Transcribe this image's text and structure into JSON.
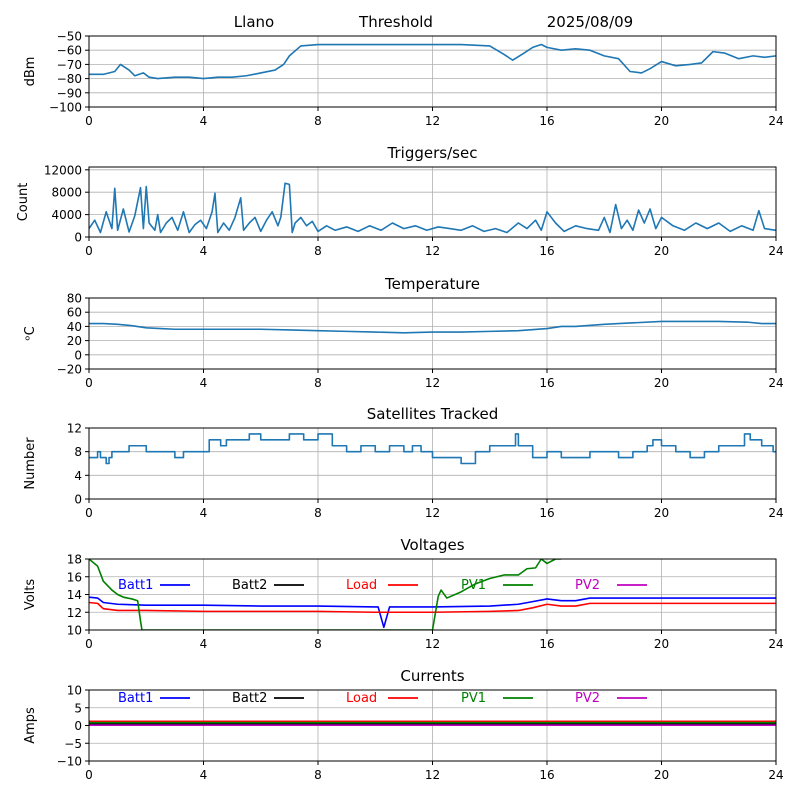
{
  "header": {
    "site": "Llano",
    "label": "Threshold",
    "date": "2025/08/09"
  },
  "colors": {
    "line": "#1f77b4",
    "grid": "#b0b0b0",
    "batt1": "#0000ff",
    "batt2": "#000000",
    "load": "#ff0000",
    "pv1": "#008000",
    "pv2": "#bf00bf"
  },
  "chart_data": [
    {
      "type": "line",
      "title": "",
      "ylabel": "dBm",
      "xlim": [
        0,
        24
      ],
      "ylim": [
        -100,
        -50
      ],
      "xticks": [
        0,
        4,
        8,
        12,
        16,
        20,
        24
      ],
      "yticks": [
        -100,
        -90,
        -80,
        -70,
        -60,
        -50
      ],
      "series": [
        {
          "color": "line",
          "x": [
            0,
            0.5,
            0.9,
            1.1,
            1.4,
            1.6,
            1.9,
            2.1,
            2.4,
            3.0,
            3.5,
            4.0,
            4.5,
            5.0,
            5.5,
            6.0,
            6.5,
            6.8,
            7.0,
            7.4,
            8.0,
            9.0,
            10.0,
            11.0,
            12.0,
            13.0,
            14.0,
            14.5,
            14.8,
            15.2,
            15.5,
            15.8,
            16.0,
            16.5,
            17.0,
            17.5,
            18.0,
            18.5,
            18.9,
            19.3,
            19.6,
            20.0,
            20.5,
            21.0,
            21.4,
            21.8,
            22.2,
            22.7,
            23.2,
            23.6,
            24.0
          ],
          "y": [
            -77,
            -77,
            -75,
            -70,
            -74,
            -78,
            -76,
            -79,
            -80,
            -79,
            -79,
            -80,
            -79,
            -79,
            -78,
            -76,
            -74,
            -70,
            -64,
            -57,
            -56,
            -56,
            -56,
            -56,
            -56,
            -56,
            -57,
            -63,
            -67,
            -62,
            -58,
            -56,
            -58,
            -60,
            -59,
            -60,
            -64,
            -66,
            -75,
            -76,
            -73,
            -68,
            -71,
            -70,
            -69,
            -61,
            -62,
            -66,
            -64,
            -65,
            -64
          ]
        }
      ]
    },
    {
      "type": "line",
      "title": "Triggers/sec",
      "ylabel": "Count",
      "xlim": [
        0,
        24
      ],
      "ylim": [
        0,
        12500
      ],
      "xticks": [
        0,
        4,
        8,
        12,
        16,
        20,
        24
      ],
      "yticks": [
        0,
        4000,
        8000,
        12000
      ],
      "series": [
        {
          "color": "line",
          "x": [
            0,
            0.2,
            0.4,
            0.6,
            0.8,
            0.9,
            1.0,
            1.2,
            1.4,
            1.6,
            1.8,
            1.9,
            2.0,
            2.1,
            2.3,
            2.4,
            2.5,
            2.7,
            2.9,
            3.1,
            3.3,
            3.5,
            3.7,
            3.9,
            4.1,
            4.3,
            4.4,
            4.5,
            4.7,
            4.9,
            5.1,
            5.3,
            5.4,
            5.6,
            5.8,
            6.0,
            6.2,
            6.4,
            6.6,
            6.7,
            6.85,
            7.0,
            7.1,
            7.2,
            7.4,
            7.6,
            7.8,
            8.0,
            8.3,
            8.6,
            9.0,
            9.4,
            9.8,
            10.2,
            10.6,
            11.0,
            11.4,
            11.8,
            12.2,
            12.6,
            13.0,
            13.4,
            13.8,
            14.2,
            14.6,
            15.0,
            15.3,
            15.6,
            15.8,
            16.0,
            16.3,
            16.6,
            17.0,
            17.4,
            17.8,
            18.0,
            18.2,
            18.4,
            18.6,
            18.8,
            19.0,
            19.2,
            19.4,
            19.6,
            19.8,
            20.0,
            20.4,
            20.8,
            21.2,
            21.6,
            22.0,
            22.4,
            22.8,
            23.2,
            23.4,
            23.6,
            24.0
          ],
          "y": [
            1500,
            3000,
            800,
            4500,
            1500,
            8700,
            1200,
            5000,
            900,
            3800,
            8800,
            1500,
            9000,
            2500,
            1200,
            4000,
            800,
            2500,
            3500,
            1200,
            4500,
            800,
            2200,
            3000,
            1500,
            4500,
            7800,
            800,
            2500,
            1200,
            3500,
            7000,
            1200,
            2500,
            3500,
            1000,
            3000,
            4500,
            2000,
            3500,
            9600,
            9400,
            800,
            2500,
            3500,
            2000,
            2800,
            1000,
            2000,
            1200,
            1800,
            1000,
            2000,
            1200,
            2500,
            1500,
            2000,
            1200,
            1800,
            1500,
            1200,
            2000,
            1000,
            1500,
            800,
            2500,
            1500,
            3000,
            1200,
            4500,
            2500,
            1000,
            2000,
            1500,
            1200,
            3500,
            800,
            5800,
            1500,
            3000,
            1200,
            4800,
            2500,
            5000,
            1500,
            3500,
            2000,
            1200,
            2500,
            1500,
            2500,
            1000,
            2000,
            1200,
            4700,
            1500,
            1200
          ]
        }
      ]
    },
    {
      "type": "line",
      "title": "Temperature",
      "ylabel": "ᵒC",
      "xlim": [
        0,
        24
      ],
      "ylim": [
        -20,
        80
      ],
      "xticks": [
        0,
        4,
        8,
        12,
        16,
        20,
        24
      ],
      "yticks": [
        -20,
        0,
        20,
        40,
        60,
        80
      ],
      "series": [
        {
          "color": "line",
          "x": [
            0,
            0.5,
            1.0,
            1.5,
            2.0,
            2.5,
            3.0,
            4.0,
            5.0,
            6.0,
            7.0,
            8.0,
            9.0,
            10.0,
            11.0,
            12.0,
            13.0,
            14.0,
            15.0,
            16.0,
            16.5,
            17.0,
            18.0,
            19.0,
            20.0,
            21.0,
            22.0,
            23.0,
            23.5,
            24.0
          ],
          "y": [
            44,
            44,
            43,
            41,
            38,
            37,
            36,
            36,
            36,
            36,
            35,
            34,
            33,
            32,
            31,
            32,
            32,
            33,
            34,
            37,
            40,
            40,
            43,
            45,
            47,
            47,
            47,
            46,
            44,
            44
          ]
        }
      ]
    },
    {
      "type": "line",
      "title": "Satellites Tracked",
      "ylabel": "Number",
      "xlim": [
        0,
        24
      ],
      "ylim": [
        0,
        12
      ],
      "xticks": [
        0,
        4,
        8,
        12,
        16,
        20,
        24
      ],
      "yticks": [
        0,
        4,
        8,
        12
      ],
      "step": true,
      "series": [
        {
          "color": "line",
          "x": [
            0,
            0.3,
            0.4,
            0.5,
            0.6,
            0.7,
            0.8,
            1.0,
            1.4,
            2.0,
            2.5,
            3.0,
            3.3,
            4.0,
            4.2,
            4.6,
            4.8,
            5.3,
            5.6,
            6.0,
            6.5,
            7.0,
            7.5,
            8.0,
            8.5,
            9.0,
            9.5,
            10.0,
            10.5,
            11.0,
            11.3,
            11.6,
            12.0,
            12.5,
            13.0,
            13.5,
            14.0,
            14.6,
            14.9,
            15.0,
            15.5,
            16.0,
            16.5,
            17.0,
            17.5,
            18.0,
            18.5,
            19.0,
            19.5,
            19.7,
            20.0,
            20.5,
            21.0,
            21.5,
            22.0,
            22.5,
            22.9,
            23.1,
            23.5,
            23.9
          ],
          "y": [
            7,
            8,
            7,
            7,
            6,
            7,
            8,
            8,
            9,
            8,
            8,
            7,
            8,
            8,
            10,
            9,
            10,
            10,
            11,
            10,
            10,
            11,
            10,
            11,
            9,
            8,
            9,
            8,
            9,
            8,
            9,
            8,
            7,
            7,
            6,
            8,
            9,
            9,
            11,
            9,
            7,
            8,
            7,
            7,
            8,
            8,
            7,
            8,
            9,
            10,
            9,
            8,
            7,
            8,
            9,
            9,
            11,
            10,
            9,
            8
          ]
        }
      ]
    },
    {
      "type": "line",
      "title": "Voltages",
      "ylabel": "Volts",
      "xlim": [
        0,
        24
      ],
      "ylim": [
        10,
        18
      ],
      "xticks": [
        0,
        4,
        8,
        12,
        16,
        20,
        24
      ],
      "yticks": [
        10,
        12,
        14,
        16,
        18
      ],
      "legend": "inline",
      "series": [
        {
          "name": "Batt1",
          "color": "batt1",
          "x": [
            0,
            0.3,
            0.5,
            1.0,
            2.0,
            4.0,
            6.0,
            8.0,
            10.0,
            10.1,
            10.3,
            10.5,
            12.0,
            14.0,
            15.0,
            15.5,
            16.0,
            16.5,
            17.0,
            17.5,
            18.0,
            20.0,
            22.0,
            24.0
          ],
          "y": [
            13.7,
            13.6,
            13.1,
            12.9,
            12.8,
            12.8,
            12.7,
            12.7,
            12.6,
            12.6,
            10.3,
            12.6,
            12.6,
            12.7,
            12.9,
            13.2,
            13.5,
            13.3,
            13.3,
            13.6,
            13.6,
            13.6,
            13.6,
            13.6
          ]
        },
        {
          "name": "Batt2",
          "color": "batt2",
          "x": [],
          "y": []
        },
        {
          "name": "Load",
          "color": "load",
          "x": [
            0,
            0.3,
            0.5,
            1.0,
            2.0,
            4.0,
            6.0,
            8.0,
            10.0,
            12.0,
            14.0,
            15.0,
            15.5,
            16.0,
            16.5,
            17.0,
            17.5,
            18.0,
            20.0,
            22.0,
            24.0
          ],
          "y": [
            13.1,
            13.0,
            12.4,
            12.2,
            12.2,
            12.1,
            12.1,
            12.1,
            12.0,
            12.0,
            12.1,
            12.2,
            12.5,
            12.9,
            12.7,
            12.7,
            13.0,
            13.0,
            13.0,
            13.0,
            13.0
          ]
        },
        {
          "name": "PV1",
          "color": "pv1",
          "x": [
            0,
            0.3,
            0.5,
            0.8,
            1.0,
            1.2,
            1.5,
            1.7,
            1.8,
            1.85,
            12.0,
            12.2,
            12.3,
            12.5,
            13.0,
            13.5,
            14.0,
            14.5,
            15.0,
            15.3,
            15.6,
            15.8,
            16.0,
            16.3,
            16.5
          ],
          "y": [
            18,
            17.2,
            15.5,
            14.5,
            14.0,
            13.7,
            13.5,
            13.3,
            11,
            10,
            10,
            13.8,
            14.5,
            13.6,
            14.3,
            15.2,
            15.8,
            16.2,
            16.2,
            16.9,
            17.0,
            18,
            17.5,
            18,
            18
          ]
        },
        {
          "name": "PV2",
          "color": "pv2",
          "x": [],
          "y": []
        }
      ]
    },
    {
      "type": "line",
      "title": "Currents",
      "ylabel": "Amps",
      "xlim": [
        0,
        24
      ],
      "ylim": [
        -10,
        10
      ],
      "xticks": [
        0,
        4,
        8,
        12,
        16,
        20,
        24
      ],
      "yticks": [
        -10,
        -5,
        0,
        5,
        10
      ],
      "legend": "inline",
      "series": [
        {
          "name": "Batt1",
          "color": "batt1",
          "x": [
            0,
            24
          ],
          "y": [
            0.3,
            0.3
          ]
        },
        {
          "name": "Batt2",
          "color": "batt2",
          "x": [
            0,
            24
          ],
          "y": [
            0.5,
            0.5
          ]
        },
        {
          "name": "Load",
          "color": "load",
          "x": [
            0,
            24
          ],
          "y": [
            1.2,
            1.2
          ]
        },
        {
          "name": "PV1",
          "color": "pv1",
          "x": [
            0,
            24
          ],
          "y": [
            0.8,
            0.8
          ]
        },
        {
          "name": "PV2",
          "color": "pv2",
          "x": [
            0,
            24
          ],
          "y": [
            0.1,
            0.1
          ]
        }
      ]
    }
  ]
}
